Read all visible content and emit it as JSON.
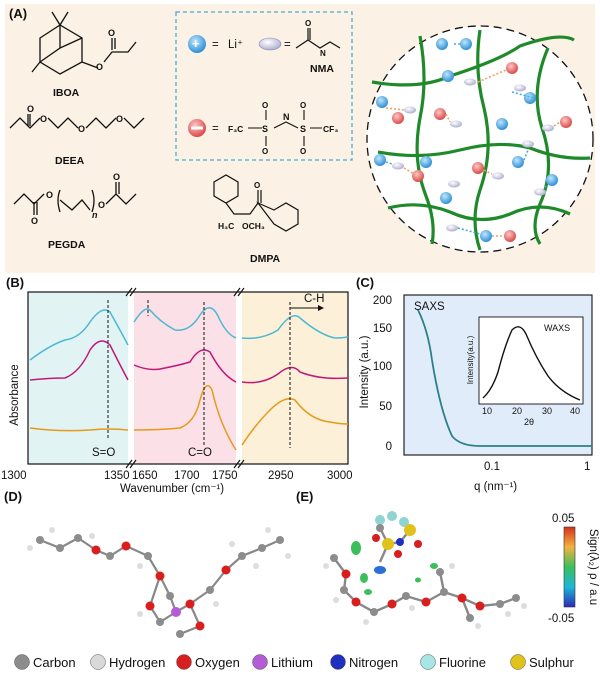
{
  "panels": {
    "A": {
      "label": "(A)",
      "molecules": [
        "IBOA",
        "DEEA",
        "PEGDA",
        "DMPA"
      ],
      "pegda_subscript": "n",
      "dmpa_groups": [
        "H₃C",
        "OCH₃"
      ],
      "legend": {
        "plus_eq": "=",
        "li": "Li⁺",
        "nma_eq": "=",
        "nma": "NMA"
      },
      "tfsi_atoms": {
        "F3C": "F₃C",
        "S": "S",
        "N": "N",
        "CF3": "CF₃",
        "O": "O"
      }
    },
    "B": {
      "label": "(B)",
      "ylabel": "Absorbance",
      "xlabel": "Wavenumber (cm⁻¹)",
      "ticks": [
        "1300",
        "1350",
        "1650",
        "1700",
        "1750",
        "2950",
        "3000"
      ],
      "annotations": {
        "so": "S=O",
        "co": "C=O",
        "ch": "C-H"
      },
      "colors": {
        "cyan": "#4db8d3",
        "magenta": "#c0187a",
        "orange": "#e59a1c"
      }
    },
    "C": {
      "label": "(C)",
      "ylabel": "Intensity (a.u.)",
      "xlabel": "q (nm⁻¹)",
      "yticks": [
        "0",
        "50",
        "100",
        "150",
        "200"
      ],
      "xticks": [
        "0.1",
        "1"
      ],
      "saxs": "SAXS",
      "inset": {
        "title": "WAXS",
        "ylabel": "Intensity(a.u.)",
        "xlabel": "2θ",
        "xticks": [
          "10",
          "20",
          "30",
          "40"
        ]
      }
    },
    "D": {
      "label": "(D)"
    },
    "E": {
      "label": "(E)",
      "colorbar": {
        "max": "0.05",
        "min": "-0.05",
        "label": "Sign(λ₂) ρ / a.u"
      }
    }
  },
  "atom_legend": [
    {
      "name": "Carbon",
      "color": "#8c8c8c"
    },
    {
      "name": "Hydrogen",
      "color": "#d9d9d9"
    },
    {
      "name": "Oxygen",
      "color": "#d81e1e"
    },
    {
      "name": "Lithium",
      "color": "#b35cd6"
    },
    {
      "name": "Nitrogen",
      "color": "#1f2fbf"
    },
    {
      "name": "Fluorine",
      "color": "#a8e6e6"
    },
    {
      "name": "Sulphur",
      "color": "#e0c21a"
    }
  ]
}
